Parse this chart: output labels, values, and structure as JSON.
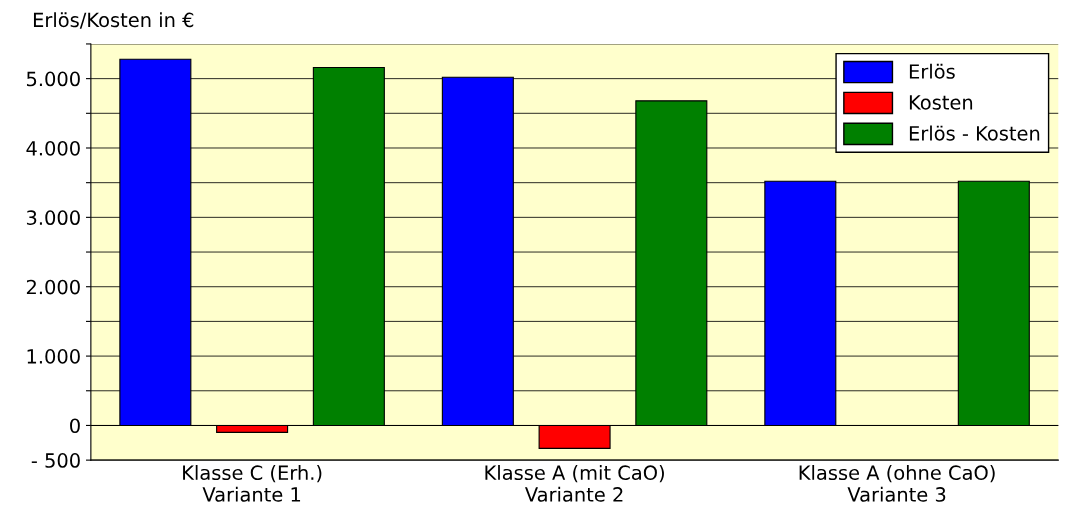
{
  "chart_data": {
    "type": "bar",
    "ylabel": "Erlös/Kosten in €",
    "categories": [
      "Klasse C (Erh.)\nVariante 1",
      "Klasse A (mit CaO)\nVariante 2",
      "Klasse A (ohne CaO)\nVariante 3"
    ],
    "series": [
      {
        "name": "Erlös",
        "color": "#0000ff",
        "values": [
          5280,
          5020,
          3520
        ]
      },
      {
        "name": "Kosten",
        "color": "#ff0000",
        "values": [
          -100,
          -330,
          null
        ]
      },
      {
        "name": "Erlös - Kosten",
        "color": "#008000",
        "values": [
          5160,
          4680,
          3520
        ]
      }
    ],
    "ylim": [
      -500,
      5500
    ],
    "yticks": [
      {
        "value": -500,
        "label": "- 500"
      },
      0,
      {
        "value": 500,
        "label": null
      },
      {
        "value": 1000,
        "label": "1.000"
      },
      {
        "value": 1500,
        "label": null
      },
      {
        "value": 2000,
        "label": "2.000"
      },
      {
        "value": 2500,
        "label": null
      },
      {
        "value": 3000,
        "label": "3.000"
      },
      {
        "value": 3500,
        "label": null
      },
      {
        "value": 4000,
        "label": "4.000"
      },
      {
        "value": 4500,
        "label": null
      },
      {
        "value": 5000,
        "label": "5.000"
      },
      {
        "value": 5500,
        "label": null
      }
    ],
    "grid": "y",
    "legend": "top right"
  }
}
